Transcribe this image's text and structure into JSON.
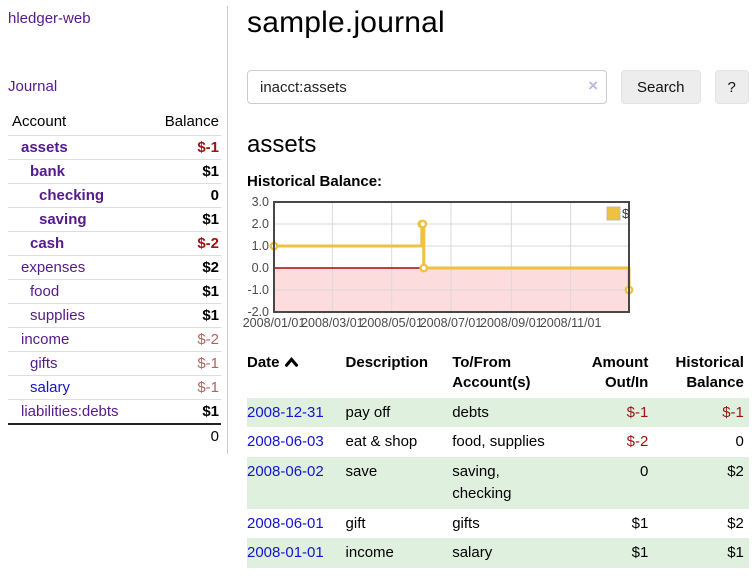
{
  "sidebar": {
    "app_title": "hledger-web",
    "journal_link": "Journal",
    "accounts_table": {
      "account_header": "Account",
      "balance_header": "Balance",
      "rows": [
        {
          "name": "assets",
          "indent": 1,
          "bold": true,
          "balance": "$-1",
          "balance_class": "neg-strong",
          "link_class": "purple"
        },
        {
          "name": "bank",
          "indent": 2,
          "bold": true,
          "balance": "$1",
          "balance_class": "",
          "link_class": "purple"
        },
        {
          "name": "checking",
          "indent": 3,
          "bold": true,
          "balance": "0",
          "balance_class": "",
          "link_class": "purple"
        },
        {
          "name": "saving",
          "indent": 3,
          "bold": true,
          "balance": "$1",
          "balance_class": "",
          "link_class": "purple"
        },
        {
          "name": "cash",
          "indent": 2,
          "bold": true,
          "balance": "$-2",
          "balance_class": "neg-strong",
          "link_class": "purple"
        },
        {
          "name": "expenses",
          "indent": 1,
          "bold": false,
          "balance": "$2",
          "balance_class": "",
          "link_class": "purple"
        },
        {
          "name": "food",
          "indent": 2,
          "bold": false,
          "balance": "$1",
          "balance_class": "",
          "link_class": "purple"
        },
        {
          "name": "supplies",
          "indent": 2,
          "bold": false,
          "balance": "$1",
          "balance_class": "",
          "link_class": "purple"
        },
        {
          "name": "income",
          "indent": 1,
          "bold": false,
          "balance": "$-2",
          "balance_class": "neg-soft",
          "link_class": "purple"
        },
        {
          "name": "gifts",
          "indent": 2,
          "bold": false,
          "balance": "$-1",
          "balance_class": "neg-soft",
          "link_class": "purple"
        },
        {
          "name": "salary",
          "indent": 2,
          "bold": false,
          "balance": "$-1",
          "balance_class": "neg-soft",
          "link_class": "blue"
        },
        {
          "name": "liabilities:debts",
          "indent": 1,
          "bold": false,
          "balance": "$1",
          "balance_class": "",
          "link_class": "purple"
        }
      ],
      "total": "0"
    }
  },
  "header": {
    "title": "sample.journal"
  },
  "search": {
    "value": "inacct:assets",
    "clear_icon": "×",
    "button_label": "Search",
    "help_label": "?"
  },
  "main": {
    "account_heading": "assets",
    "chart_label": "Historical Balance:"
  },
  "chart_data": {
    "type": "line",
    "step": true,
    "title": "Historical Balance",
    "series": [
      {
        "name": "$",
        "color": "#edc240",
        "points": [
          [
            "2008-01-01",
            1.0
          ],
          [
            "2008-06-01",
            2.0
          ],
          [
            "2008-06-02",
            2.0
          ],
          [
            "2008-06-03",
            0.0
          ],
          [
            "2008-12-31",
            -1.0
          ]
        ]
      }
    ],
    "x_ticks": [
      {
        "date": "2008-01-01",
        "label": "2008/01/01"
      },
      {
        "date": "2008-03-01",
        "label": "2008/03/01"
      },
      {
        "date": "2008-05-01",
        "label": "2008/05/01"
      },
      {
        "date": "2008-07-01",
        "label": "2008/07/01"
      },
      {
        "date": "2008-09-01",
        "label": "2008/09/01"
      },
      {
        "date": "2008-11-01",
        "label": "2008/11/01"
      }
    ],
    "y_ticks": [
      3.0,
      2.0,
      1.0,
      0.0,
      -1.0,
      -2.0
    ],
    "ylim": [
      -2.0,
      3.0
    ],
    "xlim": [
      "2008-01-01",
      "2008-12-31"
    ],
    "legend": {
      "label": "$",
      "position": "top-right",
      "swatch_color": "#edc240"
    },
    "grid": true,
    "negative_region_color": "#fcdcdc",
    "zero_line_color": "#a80606",
    "border_color": "#474747",
    "gridline_color": "#d9d9d9",
    "tick_label_color": "#4a4a4a"
  },
  "register_table": {
    "headers": {
      "date": "Date",
      "description": "Description",
      "accounts": "To/From Account(s)",
      "amount": "Amount Out/In",
      "balance": "Historical Balance"
    },
    "sort_icon": "chevron-up",
    "rows": [
      {
        "date": "2008-12-31",
        "description": "pay off",
        "accounts": "debts",
        "amount": "$-1",
        "amount_neg": true,
        "balance": "$-1",
        "balance_neg": true
      },
      {
        "date": "2008-06-03",
        "description": "eat & shop",
        "accounts": "food, supplies",
        "amount": "$-2",
        "amount_neg": true,
        "balance": "0",
        "balance_neg": false
      },
      {
        "date": "2008-06-02",
        "description": "save",
        "accounts": "saving, checking",
        "amount": "0",
        "amount_neg": false,
        "balance": "$2",
        "balance_neg": false
      },
      {
        "date": "2008-06-01",
        "description": "gift",
        "accounts": "gifts",
        "amount": "$1",
        "amount_neg": false,
        "balance": "$2",
        "balance_neg": false
      },
      {
        "date": "2008-01-01",
        "description": "income",
        "accounts": "salary",
        "amount": "$1",
        "amount_neg": false,
        "balance": "$1",
        "balance_neg": false
      }
    ]
  }
}
